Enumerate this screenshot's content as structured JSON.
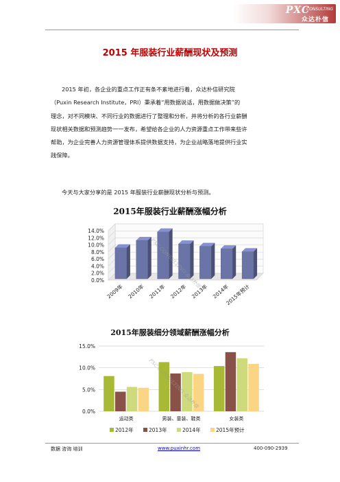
{
  "header": {
    "brand_main": "PXC",
    "brand_sub": "CONSULTING",
    "brand_cn": "众达朴信"
  },
  "title": "2015 年服装行业薪酬现状及预测",
  "paragraph_lines": [
    "2015 年初，各企业的重点工作正有条不紊地进行着，众达朴信研究院",
    "（Puxin Research Institute，PRI）秉承着“用数据说话，用数据做决策”的",
    "理念，对不同模块、不同行业的数据进行了整理和分析，并将分析的各行业薪酬",
    "现状相关数据和预测趋势一一发布，希望给各企业的人力资源重点工作带来些许",
    "帮助，为企业完善人力资源管理体系提供数据支持，为企业战略落地提供行业实",
    "践保障。"
  ],
  "intro": "今天与大家分享的是 2015 年服装行业薪酬现状分析与预测。",
  "chart_data": [
    {
      "type": "bar",
      "title": "2015年服装行业薪酬涨幅分析",
      "categories": [
        "2009年",
        "2010年",
        "2011年",
        "2012年",
        "2013年",
        "2014年",
        "2015年预计"
      ],
      "values": [
        8.8,
        10.9,
        13.3,
        9.9,
        9.2,
        8.5,
        7.7
      ],
      "unit": "%",
      "ylim": [
        0,
        14
      ],
      "yticks": [
        "0.0%",
        "2.0%",
        "4.0%",
        "6.0%",
        "8.0%",
        "10.0%",
        "12.0%",
        "14.0%"
      ],
      "color": "#6b74a6",
      "grid": true
    },
    {
      "type": "bar",
      "title": "2015年服装细分领域薪酬涨幅分析",
      "categories": [
        "运动类",
        "男装、童装、鞋类",
        "女装类"
      ],
      "series": [
        {
          "name": "2012年",
          "values": [
            8.1,
            11.3,
            10.4
          ],
          "color": "#a8b935"
        },
        {
          "name": "2013年",
          "values": [
            4.5,
            8.7,
            13.6
          ],
          "color": "#8a5148"
        },
        {
          "name": "2014年",
          "values": [
            5.6,
            9.0,
            12.2
          ],
          "color": "#cfda7c"
        },
        {
          "name": "2015年预计",
          "values": [
            5.4,
            8.6,
            10.9
          ],
          "color": "#fad583"
        }
      ],
      "ylim": [
        0,
        15
      ],
      "yticks": [
        "0.0%",
        "5.0%",
        "10.0%",
        "15.0%"
      ],
      "legend": "bottom"
    }
  ],
  "watermark": "PXC CONSULTING 众达朴信",
  "footer": {
    "left": "数据  咨询  培训",
    "link": "www.puxinhr.com",
    "phone": "400-090-2939"
  }
}
